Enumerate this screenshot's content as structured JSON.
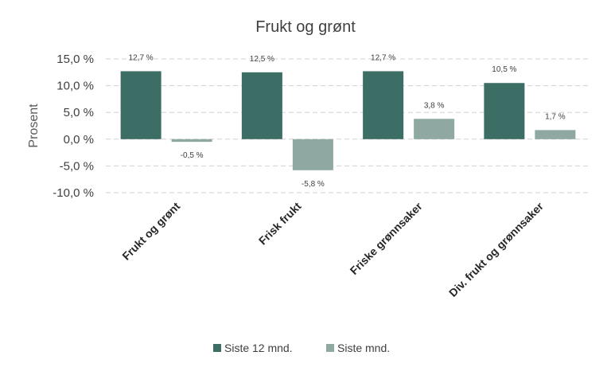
{
  "chart_data": {
    "type": "bar",
    "title": "Frukt og grønt",
    "ylabel": "Prosent",
    "xlabel": "",
    "categories": [
      "Frukt og grønt",
      "Frisk frukt",
      "Friske grønnsaker",
      "Div. frukt og grønnsaker"
    ],
    "series": [
      {
        "name": "Siste 12 mnd.",
        "color": "#3d6e66",
        "values": [
          12.7,
          12.5,
          12.7,
          10.5
        ],
        "labels": [
          "12,7 %",
          "12,5 %",
          "12,7 %",
          "10,5 %"
        ]
      },
      {
        "name": "Siste mnd.",
        "color": "#8fa8a2",
        "values": [
          -0.5,
          -5.8,
          3.8,
          1.7
        ],
        "labels": [
          "-0,5 %",
          "-5,8 %",
          "3,8 %",
          "1,7 %"
        ]
      }
    ],
    "ylim": [
      -10,
      15
    ],
    "yticks": [
      15,
      10,
      5,
      0,
      -5,
      -10
    ],
    "ytick_labels": [
      "15,0 %",
      "10,0 %",
      "5,0 %",
      "0,0 %",
      "-5,0 %",
      "-10,0 %"
    ],
    "grid": true,
    "legend_position": "bottom"
  }
}
